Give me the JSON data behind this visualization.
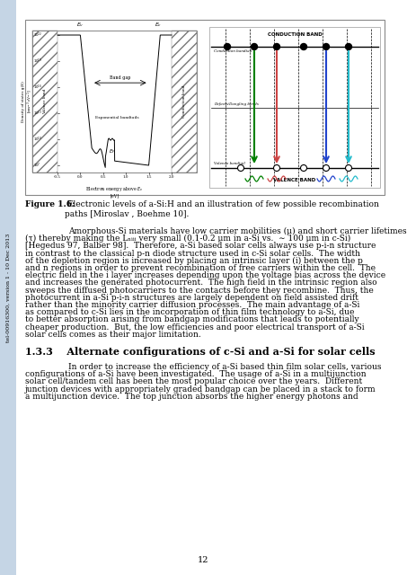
{
  "page_bg": "#edf2f7",
  "left_bar_color": "#c5d5e5",
  "left_text": "tel-00916300, version 1 - 10 Dec 2013",
  "figure_caption_bold": "Figure 1.6:",
  "figure_caption_rest": " Electronic levels of a-Si:H and an illustration of few possible recombination paths [Miroslav , Boehme 10].",
  "section_heading": "1.3.3    Alternate configurations of c-Si and a-Si for solar cells",
  "page_number": "12",
  "body1_lines": [
    "Amorphous-Si materials have low carrier mobilities (μ) and short carrier lifetimes",
    "(τ) thereby making the Lₙᵢᵢᵢ very small (0.1-0.2 μm in a-Si vs.  ∼ 100 μm in c-Si)",
    "[Hegedus 97, Balber 98].  Therefore, a-Si based solar cells always use p-i-n structure",
    "in contrast to the classical p-n diode structure used in c-Si solar cells.  The width",
    "of the depletion region is increased by placing an intrinsic layer (i) between the p",
    "and n regions in order to prevent recombination of free carriers within the cell.  The",
    "electric field in the i layer increases depending upon the voltage bias across the device",
    "and increases the generated photocurrent.  The high field in the intrinsic region also",
    "sweeps the diffused photocarriers to the contacts before they recombine.  Thus, the",
    "photocurrent in a-Si p-i-n structures are largely dependent on field assisted drift",
    "rather than the minority carrier diffusion processes.  The main advantage of a-Si",
    "as compared to c-Si lies in the incorporation of thin film technology to a-Si, due",
    "to better absorption arising from bandgap modifications that leads to potentially",
    "cheaper production.  But, the low efficiencies and poor electrical transport of a-Si",
    "solar cells comes as their major limitation."
  ],
  "body2_lines": [
    "In order to increase the efficiency of a-Si based thin film solar cells, various",
    "configurations of a-Si have been investigated.  The usage of a-Si in a multijunction",
    "solar cell/tandem cell has been the most popular choice over the years.  Different",
    "junction devices with appropriately graded bandgap can be placed in a stack to form",
    "a multijunction device.  The top junction absorbs the higher energy photons and"
  ]
}
